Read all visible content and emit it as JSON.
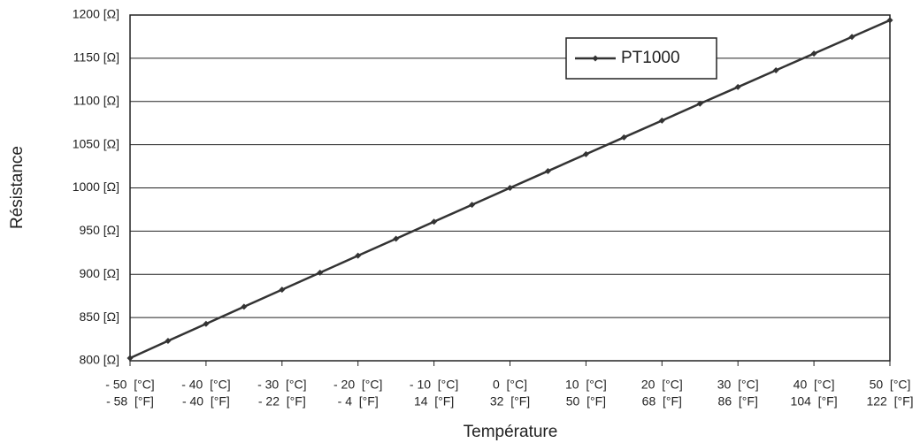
{
  "chart_data": {
    "type": "line",
    "x_label": "Température",
    "y_label": "Résistance",
    "x": [
      -50,
      -45,
      -40,
      -35,
      -30,
      -25,
      -20,
      -15,
      -10,
      -5,
      0,
      5,
      10,
      15,
      20,
      25,
      30,
      35,
      40,
      45,
      50
    ],
    "series": [
      {
        "name": "PT1000",
        "color": "#333333",
        "values": [
          803.1,
          823.0,
          842.7,
          862.5,
          882.2,
          901.9,
          921.6,
          941.2,
          960.9,
          980.4,
          1000,
          1019.5,
          1039.0,
          1058.5,
          1077.9,
          1097.4,
          1116.7,
          1136.1,
          1155.4,
          1174.7,
          1194.0
        ]
      }
    ],
    "xlim": [
      -50,
      50
    ],
    "ylim": [
      800,
      1200
    ],
    "xticks": [
      {
        "value": -50,
        "label": "- 50  [°C]"
      },
      {
        "value": -40,
        "label": "- 40  [°C]"
      },
      {
        "value": -30,
        "label": "- 30  [°C]"
      },
      {
        "value": -20,
        "label": "- 20  [°C]"
      },
      {
        "value": -10,
        "label": "- 10  [°C]"
      },
      {
        "value": 0,
        "label": "0  [°C]"
      },
      {
        "value": 10,
        "label": "10  [°C]"
      },
      {
        "value": 20,
        "label": "20  [°C]"
      },
      {
        "value": 30,
        "label": "30  [°C]"
      },
      {
        "value": 40,
        "label": "40  [°C]"
      },
      {
        "value": 50,
        "label": "50  [°C]"
      }
    ],
    "x2ticks": [
      {
        "value": -50,
        "label": "- 58  [°F]"
      },
      {
        "value": -40,
        "label": "- 40  [°F]"
      },
      {
        "value": -30,
        "label": "- 22  [°F]"
      },
      {
        "value": -20,
        "label": "- 4  [°F]"
      },
      {
        "value": -10,
        "label": "14  [°F]"
      },
      {
        "value": 0,
        "label": "32  [°F]"
      },
      {
        "value": 10,
        "label": "50  [°F]"
      },
      {
        "value": 20,
        "label": "68  [°F]"
      },
      {
        "value": 30,
        "label": "86  [°F]"
      },
      {
        "value": 40,
        "label": "104  [°F]"
      },
      {
        "value": 50,
        "label": "122  [°F]"
      }
    ],
    "yticks": [
      {
        "value": 800,
        "label": "800 [Ω]"
      },
      {
        "value": 850,
        "label": "850 [Ω]"
      },
      {
        "value": 900,
        "label": "900 [Ω]"
      },
      {
        "value": 950,
        "label": "950 [Ω]"
      },
      {
        "value": 1000,
        "label": "1000 [Ω]"
      },
      {
        "value": 1050,
        "label": "1050 [Ω]"
      },
      {
        "value": 1100,
        "label": "1100 [Ω]"
      },
      {
        "value": 1150,
        "label": "1150 [Ω]"
      },
      {
        "value": 1200,
        "label": "1200 [Ω]"
      }
    ],
    "grid": true,
    "legend": "upper-right"
  }
}
